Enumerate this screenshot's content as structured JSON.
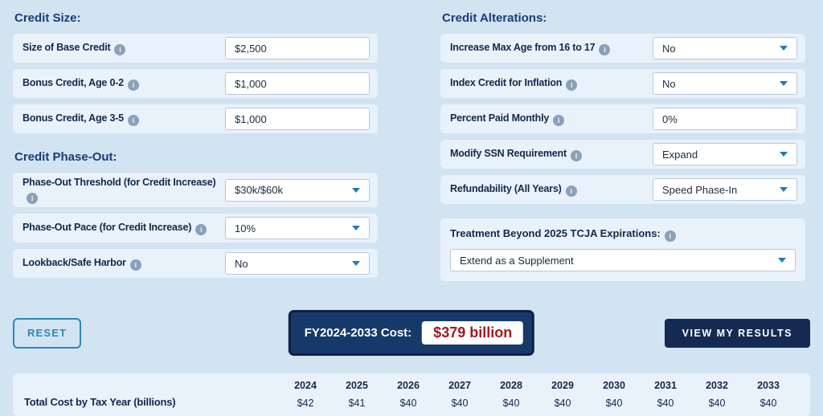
{
  "colors": {
    "page_bg": "#d2e3f2",
    "row_bg": "#e9f1fa",
    "heading_blue": "#173e77",
    "label_navy": "#13294e",
    "accent_teal": "#2e86b8",
    "caret_blue": "#1a7db8",
    "button_navy": "#152a52",
    "cost_box_navy": "#17396a",
    "cost_red": "#a6181f"
  },
  "icons": {
    "info": "i",
    "chevron_down": "caret-down-triangle"
  },
  "left": {
    "credit_size": {
      "heading": "Credit Size:",
      "rows": [
        {
          "label": "Size of Base Credit",
          "type": "input",
          "value": "$2,500"
        },
        {
          "label": "Bonus Credit, Age 0-2",
          "type": "input",
          "value": "$1,000"
        },
        {
          "label": "Bonus Credit, Age 3-5",
          "type": "input",
          "value": "$1,000"
        }
      ]
    },
    "credit_phase_out": {
      "heading": "Credit Phase-Out:",
      "rows": [
        {
          "label": "Phase-Out Threshold (for Credit Increase)",
          "type": "select",
          "value": "$30k/$60k"
        },
        {
          "label": "Phase-Out Pace (for Credit Increase)",
          "type": "select",
          "value": "10%"
        },
        {
          "label": "Lookback/Safe Harbor",
          "type": "select",
          "value": "No"
        }
      ]
    }
  },
  "right": {
    "credit_alterations": {
      "heading": "Credit Alterations:",
      "rows": [
        {
          "label": "Increase Max Age from 16 to 17",
          "type": "select",
          "value": "No"
        },
        {
          "label": "Index Credit for Inflation",
          "type": "select",
          "value": "No"
        },
        {
          "label": "Percent Paid Monthly",
          "type": "input",
          "value": "0%"
        },
        {
          "label": "Modify SSN Requirement",
          "type": "select",
          "value": "Expand"
        },
        {
          "label": "Refundability (All Years)",
          "type": "select",
          "value": "Speed Phase-In"
        }
      ]
    },
    "treatment": {
      "heading": "Treatment Beyond 2025 TCJA Expirations:",
      "value": "Extend as a Supplement"
    }
  },
  "footer": {
    "reset_label": "RESET",
    "cost_label": "FY2024-2033 Cost:",
    "cost_value": "$379 billion",
    "view_results_label": "VIEW MY RESULTS"
  },
  "cost_table": {
    "type": "table",
    "row_label": "Total Cost by Tax Year (billions)",
    "years": [
      "2024",
      "2025",
      "2026",
      "2027",
      "2028",
      "2029",
      "2030",
      "2031",
      "2032",
      "2033"
    ],
    "values": [
      "$42",
      "$41",
      "$40",
      "$40",
      "$40",
      "$40",
      "$40",
      "$40",
      "$40",
      "$40"
    ]
  }
}
